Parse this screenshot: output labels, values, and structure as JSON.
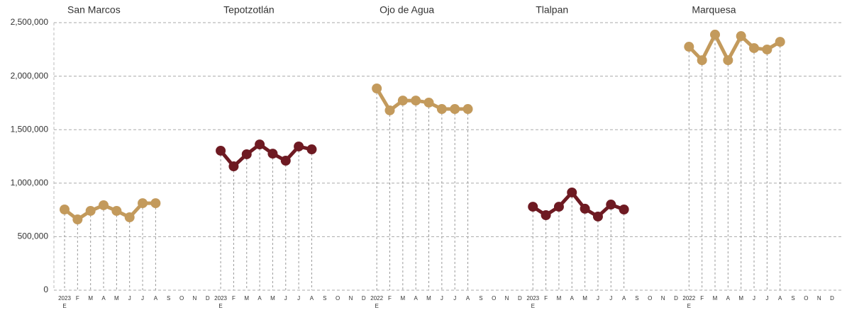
{
  "chart_data": {
    "type": "line",
    "ylim": [
      0,
      2500000
    ],
    "yticks": [
      0,
      {
        "value": 500000,
        "label": "500,000"
      },
      {
        "value": 1000000,
        "label": "1,000,000"
      },
      {
        "value": 1500000,
        "label": "1,500,000"
      },
      {
        "value": 2000000,
        "label": "2,000,000"
      },
      {
        "value": 2500000,
        "label": "2,500,000"
      }
    ],
    "grid": true,
    "groups": [
      {
        "name": "San Marcos",
        "year": "2023",
        "color": "#c39a5c",
        "months": [
          "E",
          "F",
          "M",
          "A",
          "M",
          "J",
          "J",
          "A",
          "S",
          "O",
          "N",
          "D"
        ],
        "values": [
          754000,
          661000,
          741000,
          794000,
          741000,
          681000,
          813000,
          813000,
          null,
          null,
          null,
          null
        ]
      },
      {
        "name": "Tepotzotlán",
        "year": "2023",
        "color": "#6e1a22",
        "months": [
          "E",
          "F",
          "M",
          "A",
          "M",
          "J",
          "J",
          "A",
          "S",
          "O",
          "N",
          "D"
        ],
        "values": [
          1303000,
          1157000,
          1270000,
          1362000,
          1276000,
          1210000,
          1343000,
          1316000,
          null,
          null,
          null,
          null
        ]
      },
      {
        "name": "Ojo de Agua",
        "year": "2022",
        "color": "#c39a5c",
        "months": [
          "E",
          "F",
          "M",
          "A",
          "M",
          "J",
          "J",
          "A",
          "S",
          "O",
          "N",
          "D"
        ],
        "values": [
          1885000,
          1680000,
          1772000,
          1772000,
          1753000,
          1693000,
          1693000,
          1693000,
          null,
          null,
          null,
          null
        ]
      },
      {
        "name": "Tlalpan",
        "year": "2023",
        "color": "#6e1a22",
        "months": [
          "E",
          "F",
          "M",
          "A",
          "M",
          "J",
          "J",
          "A",
          "S",
          "O",
          "N",
          "D"
        ],
        "values": [
          780000,
          701000,
          780000,
          913000,
          761000,
          688000,
          800000,
          754000,
          null,
          null,
          null,
          null
        ]
      },
      {
        "name": "Marquesa",
        "year": "2022",
        "color": "#c39a5c",
        "months": [
          "E",
          "F",
          "M",
          "A",
          "M",
          "J",
          "J",
          "A",
          "S",
          "O",
          "N",
          "D"
        ],
        "values": [
          2275000,
          2149000,
          2388000,
          2149000,
          2374000,
          2262000,
          2249000,
          2321000,
          null,
          null,
          null,
          null
        ]
      }
    ]
  }
}
